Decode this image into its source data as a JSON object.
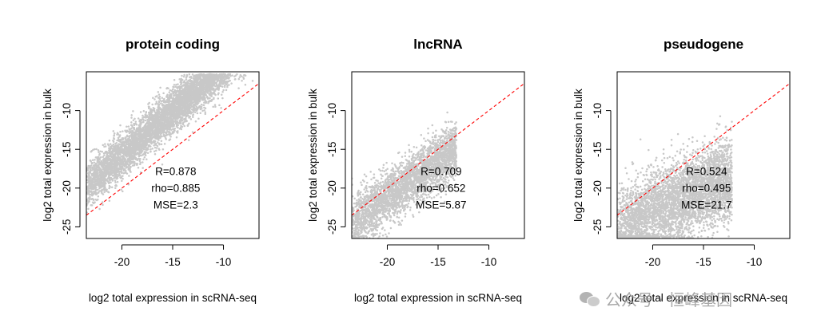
{
  "chart_data": [
    {
      "type": "scatter",
      "title": "protein coding",
      "xlabel": "log2 total expression in scRNA-seq",
      "ylabel": "log2 total expression in bulk",
      "xlim": [
        -23.5,
        -6.5
      ],
      "ylim": [
        -26.5,
        -5.0
      ],
      "x_ticks": [
        -20,
        -15,
        -10
      ],
      "y_ticks": [
        -10,
        -15,
        -20,
        -25
      ],
      "stats": {
        "R": "R=0.878",
        "rho": "rho=0.885",
        "MSE": "MSE=2.3"
      },
      "stats_anchor": [
        -14.7,
        -18.3
      ],
      "reference_line": {
        "intercept": 0.0,
        "slope": 1.0,
        "style": "dashed",
        "color": "#ff0000"
      },
      "point_color": "#c8c8c8",
      "cloud": {
        "x_range": [
          -23.5,
          -6.8
        ],
        "slope": 1.15,
        "intercept": 7.2,
        "sd": 1.4,
        "density": 7000,
        "y_floor": -26.5
      }
    },
    {
      "type": "scatter",
      "title": "lncRNA",
      "xlabel": "log2 total expression in scRNA-seq",
      "ylabel": "log2 total expression in bulk",
      "xlim": [
        -23.5,
        -6.5
      ],
      "ylim": [
        -26.5,
        -5.0
      ],
      "x_ticks": [
        -20,
        -15,
        -10
      ],
      "y_ticks": [
        -10,
        -15,
        -20,
        -25
      ],
      "stats": {
        "R": "R=0.709",
        "rho": "rho=0.652",
        "MSE": "MSE=5.87"
      },
      "stats_anchor": [
        -14.7,
        -18.3
      ],
      "reference_line": {
        "intercept": 0.0,
        "slope": 1.0,
        "style": "dashed",
        "color": "#ff0000"
      },
      "point_color": "#c8c8c8",
      "cloud": {
        "x_range": [
          -23.5,
          -13.2
        ],
        "slope": 0.9,
        "intercept": -3.2,
        "sd": 1.7,
        "density": 3200,
        "y_floor": -26.5
      }
    },
    {
      "type": "scatter",
      "title": "pseudogene",
      "xlabel": "log2 total expression in scRNA-seq",
      "ylabel": "log2 total expression in bulk",
      "xlim": [
        -23.5,
        -6.5
      ],
      "ylim": [
        -26.5,
        -5.0
      ],
      "x_ticks": [
        -20,
        -15,
        -10
      ],
      "y_ticks": [
        -10,
        -15,
        -20,
        -25
      ],
      "stats": {
        "R": "R=0.524",
        "rho": "rho=0.495",
        "MSE": "MSE=21.7"
      },
      "stats_anchor": [
        -14.7,
        -18.3
      ],
      "reference_line": {
        "intercept": 0.0,
        "slope": 1.0,
        "style": "dashed",
        "color": "#ff0000"
      },
      "point_color": "#c8c8c8",
      "cloud": {
        "x_range": [
          -23.5,
          -12.2
        ],
        "slope": 0.55,
        "intercept": -12.0,
        "sd": 2.6,
        "density": 4200,
        "y_floor": -26.5
      }
    }
  ],
  "watermark": {
    "text": "公众号 · 恒峰基因"
  }
}
